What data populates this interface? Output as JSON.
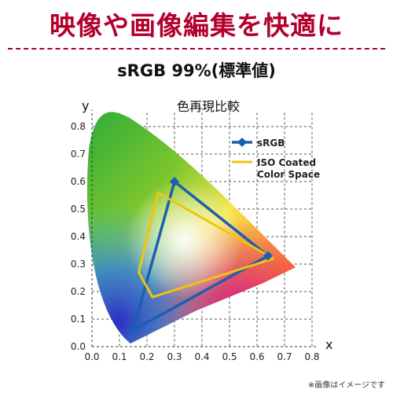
{
  "headline": "映像や画像編集を快適に",
  "subheadline": "sRGB 99%(標準値)",
  "footnote": "※画像はイメージです",
  "colors": {
    "headline": "#b3002d",
    "srgb": "#1a5fb0",
    "iso": "#f1c40f",
    "grid": "#555555"
  },
  "chart_data": {
    "type": "scatter",
    "title": "色再現比較",
    "xlabel": "x",
    "ylabel": "y",
    "xlim": [
      0,
      0.8
    ],
    "ylim": [
      0,
      0.85
    ],
    "xticks": [
      "0.0",
      "0.1",
      "0.2",
      "0.3",
      "0.4",
      "0.5",
      "0.6",
      "0.7",
      "0.8"
    ],
    "yticks": [
      "0.0",
      "0.1",
      "0.2",
      "0.3",
      "0.4",
      "0.5",
      "0.6",
      "0.7",
      "0.8"
    ],
    "grid": true,
    "legend": "top-right",
    "series": [
      {
        "name": "sRGB",
        "x": [
          0.64,
          0.3,
          0.15,
          0.64
        ],
        "y": [
          0.33,
          0.6,
          0.06,
          0.33
        ]
      },
      {
        "name": "ISO Coated Color Space",
        "x": [
          0.66,
          0.24,
          0.17,
          0.22,
          0.66
        ],
        "y": [
          0.32,
          0.56,
          0.27,
          0.18,
          0.32
        ]
      }
    ]
  }
}
